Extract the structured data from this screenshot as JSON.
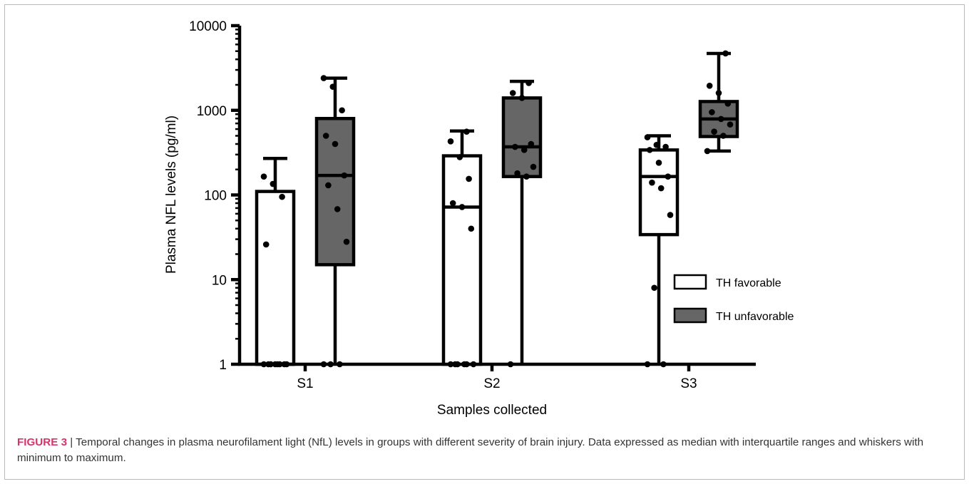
{
  "chart_data": {
    "type": "box",
    "scale": "log",
    "ylabel": "Plasma NFL levels (pg/ml)",
    "xlabel": "Samples collected",
    "ylim": [
      1,
      10000
    ],
    "yticks": [
      {
        "value": 1,
        "label": "1"
      },
      {
        "value": 10,
        "label": "10"
      },
      {
        "value": 100,
        "label": "100"
      },
      {
        "value": 1000,
        "label": "1000"
      },
      {
        "value": 10000,
        "label": "10000"
      }
    ],
    "categories": [
      "S1",
      "S2",
      "S3"
    ],
    "legend_position": "right",
    "series": [
      {
        "name": "TH favorable",
        "color": "#ffffff",
        "boxes": [
          {
            "min": 1,
            "q1": 1,
            "median": 1,
            "q3": 110,
            "max": 270,
            "points": [
              1,
              1,
              1,
              1,
              1,
              1,
              1,
              1,
              26,
              95,
              135,
              165
            ]
          },
          {
            "min": 1,
            "q1": 1,
            "median": 72,
            "q3": 290,
            "max": 570,
            "points": [
              1,
              1,
              1,
              1,
              1,
              1,
              40,
              72,
              80,
              155,
              280,
              430,
              560
            ]
          },
          {
            "min": 1,
            "q1": 34,
            "median": 165,
            "q3": 340,
            "max": 500,
            "points": [
              1,
              1,
              8,
              58,
              120,
              140,
              165,
              240,
              340,
              370,
              390,
              480
            ]
          }
        ]
      },
      {
        "name": "TH unfavorable",
        "color": "#666666",
        "boxes": [
          {
            "min": 1,
            "q1": 15,
            "median": 170,
            "q3": 800,
            "max": 2400,
            "points": [
              1,
              1,
              1,
              28,
              68,
              130,
              170,
              400,
              500,
              1000,
              1900,
              2400
            ]
          },
          {
            "min": 1,
            "q1": 165,
            "median": 370,
            "q3": 1400,
            "max": 2200,
            "points": [
              1,
              165,
              180,
              215,
              340,
              370,
              400,
              1400,
              1600,
              2100
            ]
          },
          {
            "min": 330,
            "q1": 490,
            "median": 790,
            "q3": 1270,
            "max": 4700,
            "points": [
              330,
              500,
              560,
              680,
              790,
              950,
              1200,
              1600,
              1950,
              4700
            ]
          }
        ]
      }
    ]
  },
  "caption": {
    "label": "FIGURE 3",
    "separator": " | ",
    "text": "Temporal changes in plasma neurofilament light (NfL) levels in groups with different severity of brain injury. Data expressed as median with interquartile ranges and whiskers with minimum to maximum."
  }
}
